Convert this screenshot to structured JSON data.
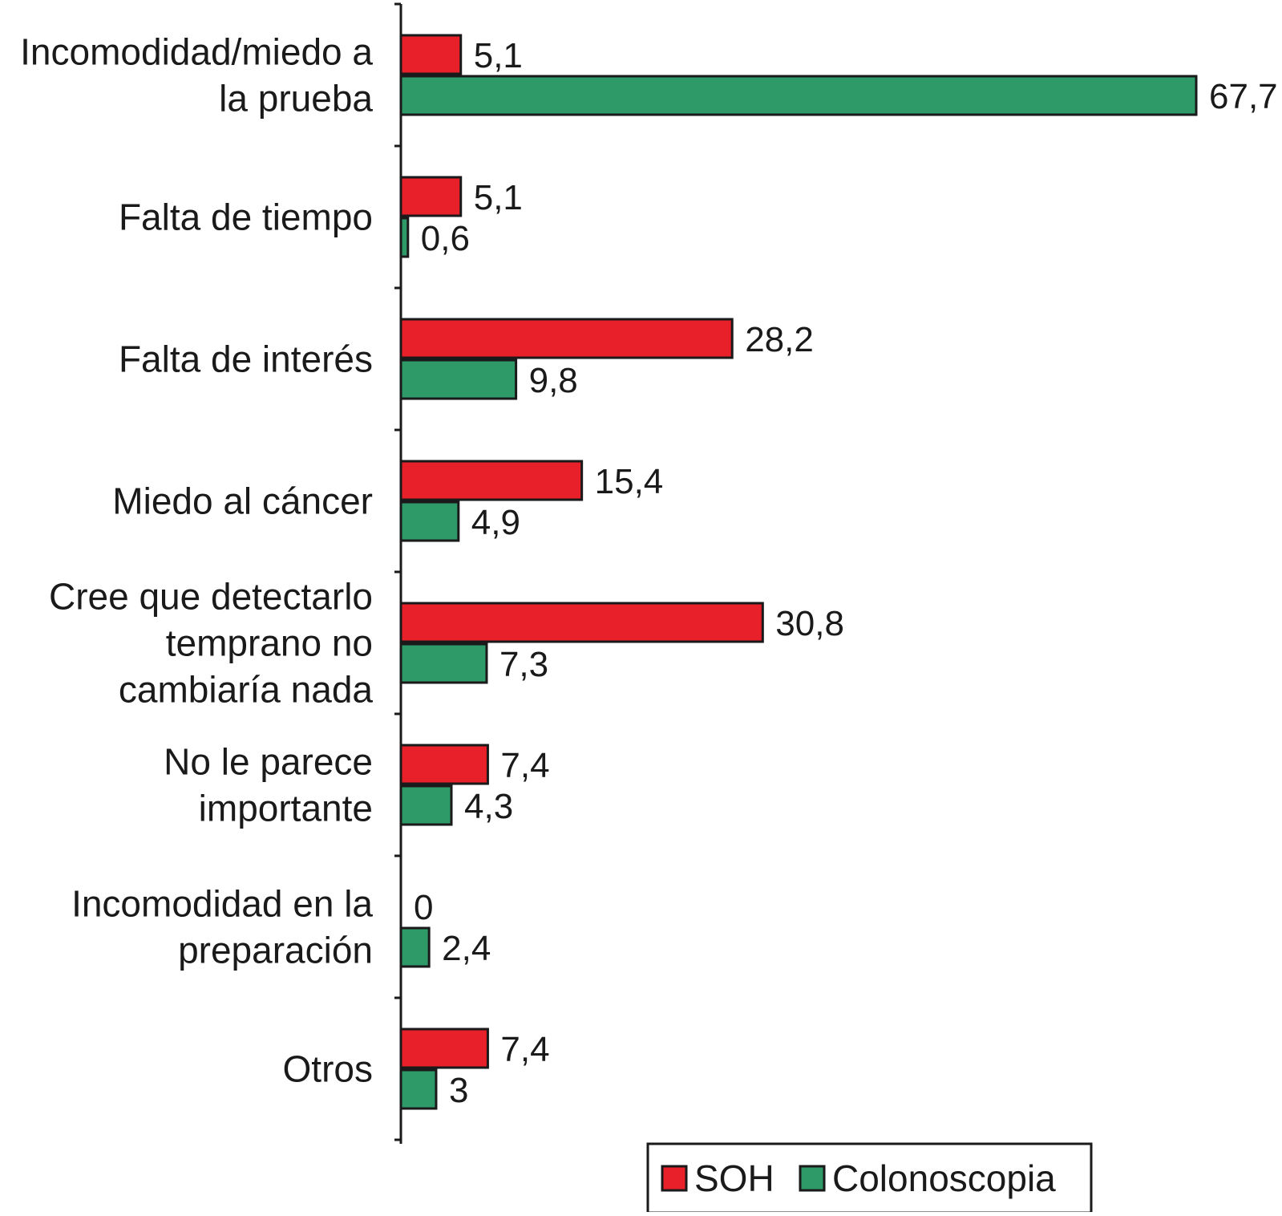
{
  "chart_data": {
    "type": "bar",
    "orientation": "horizontal",
    "categories": [
      [
        "Incomodidad/miedo a",
        "la prueba"
      ],
      [
        "Falta de tiempo"
      ],
      [
        "Falta de interés"
      ],
      [
        "Miedo al cáncer"
      ],
      [
        "Cree que detectarlo",
        "temprano no",
        "cambiaría nada"
      ],
      [
        "No le parece",
        "importante"
      ],
      [
        "Incomodidad en la",
        "preparación"
      ],
      [
        "Otros"
      ]
    ],
    "series": [
      {
        "name": "SOH",
        "color": "#e8202a",
        "values": [
          5.1,
          5.1,
          28.2,
          15.4,
          30.8,
          7.4,
          0,
          7.4
        ],
        "labels": [
          "5,1",
          "5,1",
          "28,2",
          "15,4",
          "30,8",
          "7,4",
          "0",
          "7,4"
        ]
      },
      {
        "name": "Colonoscopia",
        "color": "#2e9a68",
        "values": [
          67.7,
          0.6,
          9.8,
          4.9,
          7.3,
          4.3,
          2.4,
          3
        ],
        "labels": [
          "67,7",
          "0,6",
          "9,8",
          "4,9",
          "7,3",
          "4,3",
          "2,4",
          "3"
        ]
      }
    ],
    "xlim": [
      0,
      67.7
    ],
    "grid": false,
    "legend": {
      "placement": "bottom",
      "items": [
        "SOH",
        "Colonoscopia"
      ]
    },
    "title": "",
    "xlabel": "",
    "ylabel": ""
  }
}
